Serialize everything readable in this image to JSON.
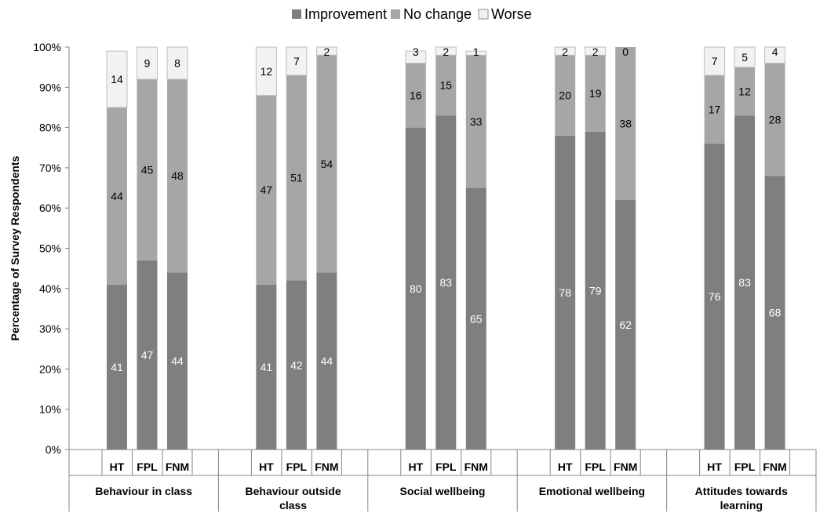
{
  "chart_data": {
    "type": "bar",
    "stacked": true,
    "percent_stacked": true,
    "ylabel": "Percentage of Survey Respondents",
    "xlabel": "",
    "ylim": [
      0,
      100
    ],
    "y_ticks": [
      "0%",
      "10%",
      "20%",
      "30%",
      "40%",
      "50%",
      "60%",
      "70%",
      "80%",
      "90%",
      "100%"
    ],
    "grid": false,
    "legend_position": "top",
    "groups": [
      {
        "label": "Behaviour in class",
        "label_lines": [
          "Behaviour in class"
        ],
        "bars": [
          "HT",
          "FPL",
          "FNM"
        ]
      },
      {
        "label": "Behaviour outside class",
        "label_lines": [
          "Behaviour outside",
          "class"
        ],
        "bars": [
          "HT",
          "FPL",
          "FNM"
        ]
      },
      {
        "label": "Social wellbeing",
        "label_lines": [
          "Social wellbeing"
        ],
        "bars": [
          "HT",
          "FPL",
          "FNM"
        ]
      },
      {
        "label": "Emotional wellbeing",
        "label_lines": [
          "Emotional wellbeing"
        ],
        "bars": [
          "HT",
          "FPL",
          "FNM"
        ]
      },
      {
        "label": "Attitudes towards learning",
        "label_lines": [
          "Attitudes towards",
          "learning"
        ],
        "bars": [
          "HT",
          "FPL",
          "FNM"
        ]
      }
    ],
    "series": [
      {
        "name": "Improvement",
        "color": "#7f7f7f",
        "label_color": "#ffffff",
        "values": [
          41,
          47,
          44,
          41,
          42,
          44,
          80,
          83,
          65,
          78,
          79,
          62,
          76,
          83,
          68
        ]
      },
      {
        "name": "No change",
        "color": "#a6a6a6",
        "label_color": "#000000",
        "values": [
          44,
          45,
          48,
          47,
          51,
          54,
          16,
          15,
          33,
          20,
          19,
          38,
          17,
          12,
          28
        ]
      },
      {
        "name": "Worse",
        "color": "#f2f2f2",
        "label_color": "#000000",
        "values": [
          14,
          9,
          8,
          12,
          7,
          2,
          3,
          2,
          1,
          2,
          2,
          0,
          7,
          5,
          4
        ]
      }
    ]
  }
}
